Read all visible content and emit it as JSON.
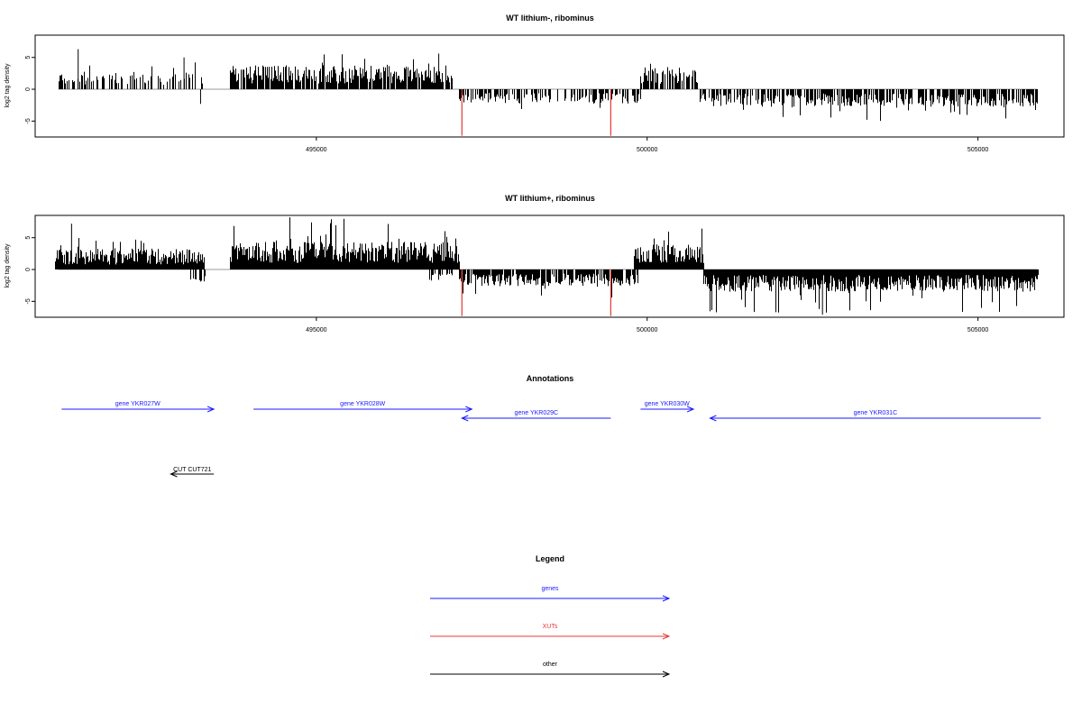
{
  "chart_data": [
    {
      "type": "bar",
      "title": "WT lithium-, ribominus",
      "ylabel": "log2 tag density",
      "xlim": [
        490750,
        506300
      ],
      "ylim": [
        -7.5,
        8.5
      ],
      "yticks": [
        -5,
        0,
        5
      ],
      "xticks": [
        495000,
        500000,
        505000
      ],
      "x_tick_labels": [
        "495000",
        "500000",
        "505000"
      ],
      "grid": false,
      "segments": [
        {
          "from": 491100,
          "to": 493300,
          "strand": "+",
          "density": 0.45,
          "mean": 1.9,
          "max": 4.5,
          "seed": 11
        },
        {
          "from": 493700,
          "to": 497050,
          "strand": "+",
          "density": 0.85,
          "mean": 2.6,
          "max": 5.8,
          "seed": 12
        },
        {
          "from": 499900,
          "to": 500750,
          "strand": "+",
          "density": 0.85,
          "mean": 2.4,
          "max": 4.2,
          "seed": 13
        },
        {
          "from": 497150,
          "to": 499900,
          "strand": "-",
          "density": 0.55,
          "mean": 1.6,
          "max": 3.5,
          "seed": 14
        },
        {
          "from": 500800,
          "to": 505900,
          "strand": "-",
          "density": 0.7,
          "mean": 1.9,
          "max": 5.0,
          "seed": 15
        }
      ],
      "extra_bars": [
        {
          "x": 491400,
          "y": 6.3
        },
        {
          "x": 493250,
          "y": -2.3
        },
        {
          "x": 493000,
          "y": 5.0
        },
        {
          "x": 496850,
          "y": 5.6
        }
      ],
      "highlights": [
        {
          "x": 497200,
          "y": -7.3,
          "color": "#e53935"
        },
        {
          "x": 499450,
          "y": -7.3,
          "color": "#e53935"
        }
      ]
    },
    {
      "type": "bar",
      "title": "WT lithium+, ribominus",
      "ylabel": "log2 tag density",
      "xlim": [
        490750,
        506300
      ],
      "ylim": [
        -7.5,
        8.5
      ],
      "yticks": [
        -5,
        0,
        5
      ],
      "xticks": [
        495000,
        500000,
        505000
      ],
      "x_tick_labels": [
        "495000",
        "500000",
        "505000"
      ],
      "grid": false,
      "segments": [
        {
          "from": 491050,
          "to": 493300,
          "strand": "+",
          "density": 1.0,
          "mean": 2.3,
          "max": 6.5,
          "seed": 21
        },
        {
          "from": 493700,
          "to": 497150,
          "strand": "+",
          "density": 1.0,
          "mean": 3.0,
          "max": 8.0,
          "seed": 22
        },
        {
          "from": 499800,
          "to": 500850,
          "strand": "+",
          "density": 1.0,
          "mean": 2.8,
          "max": 6.5,
          "seed": 23
        },
        {
          "from": 497150,
          "to": 499850,
          "strand": "-",
          "density": 0.85,
          "mean": 1.8,
          "max": 4.5,
          "seed": 24
        },
        {
          "from": 500850,
          "to": 505900,
          "strand": "-",
          "density": 1.0,
          "mean": 2.4,
          "max": 6.8,
          "seed": 25
        },
        {
          "from": 493100,
          "to": 493350,
          "strand": "-",
          "density": 0.3,
          "mean": 1.5,
          "max": 2.4,
          "seed": 26
        },
        {
          "from": 496700,
          "to": 497100,
          "strand": "-",
          "density": 0.4,
          "mean": 1.4,
          "max": 2.0,
          "seed": 27
        }
      ],
      "extra_bars": [
        {
          "x": 491300,
          "y": 7.2
        },
        {
          "x": 494600,
          "y": 8.2
        },
        {
          "x": 502650,
          "y": -7.1
        }
      ],
      "highlights": [
        {
          "x": 497200,
          "y": -7.3,
          "color": "#e53935"
        },
        {
          "x": 499450,
          "y": -7.3,
          "color": "#e53935"
        }
      ]
    }
  ],
  "annotations": {
    "title": "Annotations",
    "genes": [
      {
        "label": "gene YKR027W",
        "start": 491150,
        "end": 493450,
        "strand": "+",
        "row": 0
      },
      {
        "label": "gene YKR028W",
        "start": 494050,
        "end": 497350,
        "strand": "+",
        "row": 0
      },
      {
        "label": "gene YKR029C",
        "start": 497200,
        "end": 499450,
        "strand": "-",
        "row": 1
      },
      {
        "label": "gene YKR030W",
        "start": 499900,
        "end": 500700,
        "strand": "+",
        "row": 0
      },
      {
        "label": "gene YKR031C",
        "start": 500950,
        "end": 505950,
        "strand": "-",
        "row": 1
      }
    ],
    "others": [
      {
        "label": "CUT CUT721",
        "start": 492800,
        "end": 493450,
        "strand": "-"
      }
    ]
  },
  "legend": {
    "title": "Legend",
    "items": [
      {
        "label": "genes",
        "color": "#1a1aff"
      },
      {
        "label": "XUTs",
        "color": "#e53935"
      },
      {
        "label": "other",
        "color": "#000000"
      }
    ]
  }
}
